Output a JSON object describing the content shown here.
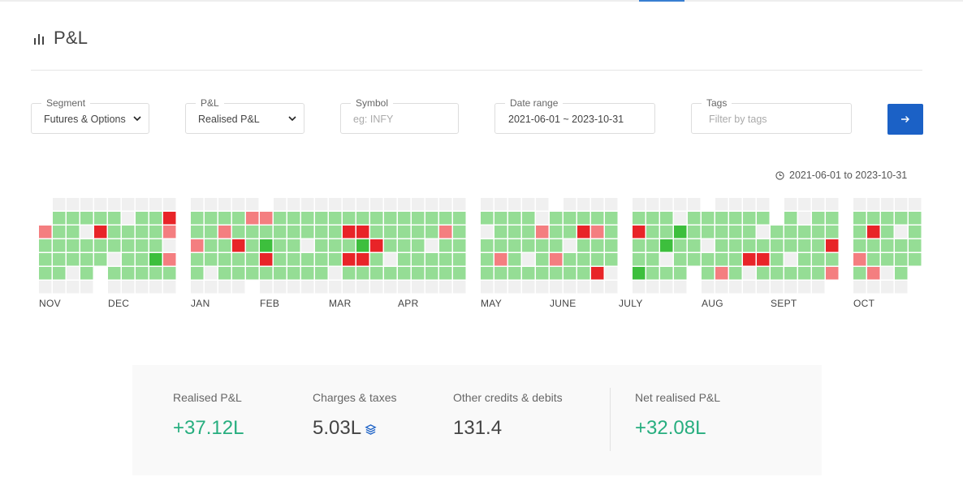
{
  "page": {
    "title": "P&L"
  },
  "filters": {
    "segment": {
      "label": "Segment",
      "value": "Futures & Options"
    },
    "pnl": {
      "label": "P&L",
      "value": "Realised P&L"
    },
    "symbol": {
      "label": "Symbol",
      "placeholder": "eg: INFY"
    },
    "date_range": {
      "label": "Date range",
      "value": "2021-06-01 ~ 2023-10-31"
    },
    "tags": {
      "label": "Tags",
      "placeholder": "Filter by tags"
    }
  },
  "range_note": "2021-06-01 to 2023-10-31",
  "months": [
    "NOV",
    "DEC",
    "JAN",
    "FEB",
    "MAR",
    "APR",
    "MAY",
    "JUNE",
    "JULY",
    "AUG",
    "SEPT",
    "OCT"
  ],
  "colors": {
    "empty": "#f0f0f0",
    "profit_light": "#95dd95",
    "profit_dark": "#3dbf3d",
    "loss_light": "#f47e80",
    "loss_dark": "#e82428",
    "positive_text": "#27ae7f",
    "accent": "#1b61c6"
  },
  "summary": {
    "realised": {
      "label": "Realised P&L",
      "value": "+37.12L"
    },
    "charges": {
      "label": "Charges & taxes",
      "value": "5.03L"
    },
    "other": {
      "label": "Other credits & debits",
      "value": "131.4"
    },
    "net": {
      "label": "Net realised P&L",
      "value": "+32.08L"
    }
  }
}
